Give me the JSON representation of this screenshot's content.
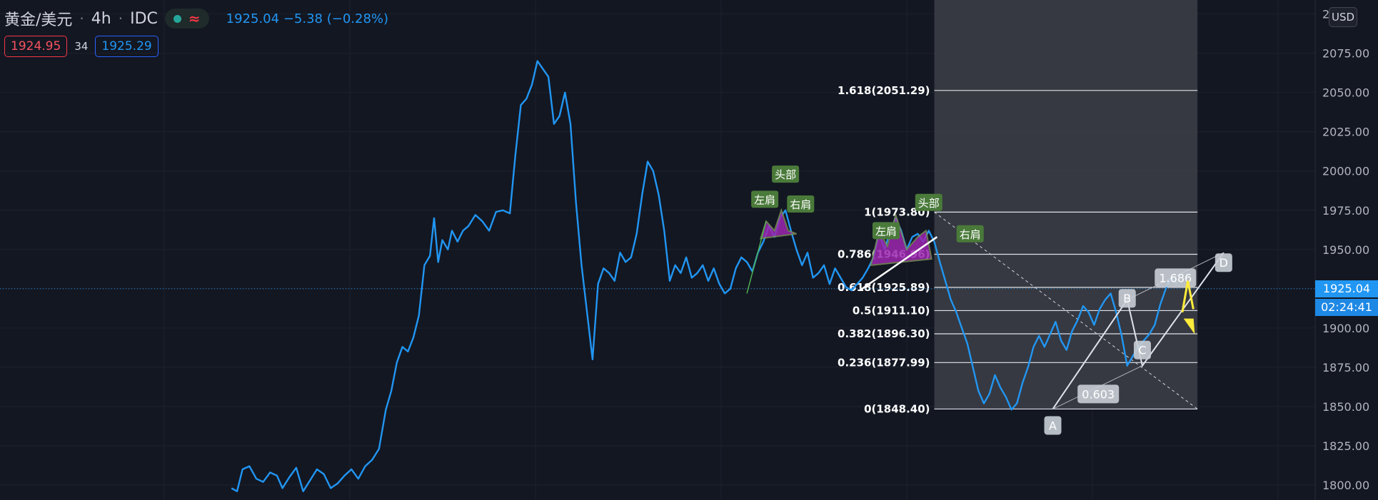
{
  "header": {
    "symbol": "黄金/美元",
    "interval": "4h",
    "source": "IDC",
    "last": "1925.04",
    "change": "−5.38",
    "change_pct": "(−0.28%)",
    "bid": "1924.95",
    "spread": "34",
    "ask": "1925.29",
    "wave_icon": "≈"
  },
  "currency_button": "USD",
  "current_price_label": "1925.04",
  "countdown_label": "02:24:41",
  "colors": {
    "background": "#131722",
    "price_line": "#2196f3",
    "pattern_fill": "#9c27b0",
    "label_bg": "#4a7a3a",
    "fib_region": "#3d3f47",
    "projection_arrow": "#ffeb3b"
  },
  "chart_data": {
    "type": "line",
    "instrument": "XAUUSD",
    "y_axis_ticks": [
      "2100.00",
      "2075.00",
      "2050.00",
      "2025.00",
      "2000.00",
      "1975.00",
      "1950.00",
      "1925.00",
      "1900.00",
      "1875.00",
      "1850.00",
      "1825.00",
      "1800.00"
    ],
    "y_axis_top_label": "2",
    "ylim": [
      1795,
      2108
    ],
    "x_domain": [
      0,
      1000
    ],
    "series": [
      {
        "values": [
          [
            168,
            1798
          ],
          [
            172,
            1796
          ],
          [
            176,
            1810
          ],
          [
            181,
            1812
          ],
          [
            186,
            1804
          ],
          [
            191,
            1802
          ],
          [
            196,
            1808
          ],
          [
            201,
            1806
          ],
          [
            205,
            1798
          ],
          [
            210,
            1805
          ],
          [
            215,
            1811
          ],
          [
            220,
            1796
          ],
          [
            225,
            1803
          ],
          [
            230,
            1810
          ],
          [
            235,
            1807
          ],
          [
            240,
            1798
          ],
          [
            245,
            1801
          ],
          [
            250,
            1806
          ],
          [
            255,
            1810
          ],
          [
            260,
            1804
          ],
          [
            265,
            1812
          ],
          [
            270,
            1816
          ],
          [
            275,
            1823
          ],
          [
            280,
            1848
          ],
          [
            284,
            1860
          ],
          [
            288,
            1878
          ],
          [
            292,
            1888
          ],
          [
            296,
            1885
          ],
          [
            300,
            1894
          ],
          [
            304,
            1908
          ],
          [
            308,
            1940
          ],
          [
            312,
            1946
          ],
          [
            315,
            1970
          ],
          [
            318,
            1942
          ],
          [
            321,
            1956
          ],
          [
            325,
            1950
          ],
          [
            328,
            1962
          ],
          [
            332,
            1955
          ],
          [
            336,
            1962
          ],
          [
            340,
            1965
          ],
          [
            345,
            1972
          ],
          [
            350,
            1968
          ],
          [
            355,
            1962
          ],
          [
            360,
            1974
          ],
          [
            365,
            1975
          ],
          [
            370,
            1973
          ],
          [
            374,
            2010
          ],
          [
            378,
            2042
          ],
          [
            382,
            2046
          ],
          [
            386,
            2055
          ],
          [
            390,
            2070
          ],
          [
            394,
            2065
          ],
          [
            398,
            2060
          ],
          [
            402,
            2030
          ],
          [
            406,
            2035
          ],
          [
            410,
            2050
          ],
          [
            414,
            2030
          ],
          [
            418,
            1980
          ],
          [
            422,
            1940
          ],
          [
            426,
            1910
          ],
          [
            430,
            1880
          ],
          [
            434,
            1928
          ],
          [
            438,
            1938
          ],
          [
            442,
            1935
          ],
          [
            446,
            1930
          ],
          [
            450,
            1948
          ],
          [
            454,
            1942
          ],
          [
            458,
            1945
          ],
          [
            462,
            1960
          ],
          [
            466,
            1985
          ],
          [
            470,
            2006
          ],
          [
            474,
            2000
          ],
          [
            478,
            1985
          ],
          [
            482,
            1962
          ],
          [
            486,
            1930
          ],
          [
            490,
            1940
          ],
          [
            494,
            1935
          ],
          [
            498,
            1945
          ],
          [
            502,
            1932
          ],
          [
            506,
            1935
          ],
          [
            510,
            1940
          ],
          [
            514,
            1930
          ],
          [
            518,
            1938
          ],
          [
            522,
            1928
          ],
          [
            526,
            1922
          ],
          [
            530,
            1925
          ],
          [
            534,
            1938
          ],
          [
            538,
            1945
          ],
          [
            542,
            1942
          ],
          [
            546,
            1936
          ],
          [
            550,
            1948
          ],
          [
            554,
            1955
          ],
          [
            558,
            1965
          ],
          [
            562,
            1958
          ],
          [
            566,
            1970
          ],
          [
            570,
            1975
          ],
          [
            574,
            1962
          ],
          [
            578,
            1950
          ],
          [
            582,
            1940
          ],
          [
            586,
            1948
          ],
          [
            590,
            1932
          ],
          [
            594,
            1935
          ],
          [
            598,
            1940
          ],
          [
            602,
            1928
          ],
          [
            606,
            1938
          ],
          [
            610,
            1932
          ],
          [
            614,
            1926
          ],
          [
            618,
            1924
          ],
          [
            622,
            1928
          ],
          [
            626,
            1932
          ],
          [
            630,
            1938
          ],
          [
            634,
            1945
          ],
          [
            638,
            1960
          ],
          [
            642,
            1950
          ],
          [
            646,
            1962
          ],
          [
            650,
            1970
          ],
          [
            654,
            1962
          ],
          [
            658,
            1950
          ],
          [
            662,
            1958
          ],
          [
            666,
            1960
          ],
          [
            670,
            1955
          ],
          [
            674,
            1962
          ],
          [
            678,
            1955
          ],
          [
            682,
            1942
          ],
          [
            686,
            1930
          ],
          [
            690,
            1918
          ],
          [
            694,
            1910
          ],
          [
            698,
            1900
          ],
          [
            702,
            1890
          ],
          [
            706,
            1875
          ],
          [
            710,
            1860
          ],
          [
            714,
            1852
          ],
          [
            718,
            1858
          ],
          [
            722,
            1870
          ],
          [
            726,
            1862
          ],
          [
            730,
            1856
          ],
          [
            734,
            1848
          ],
          [
            738,
            1852
          ],
          [
            742,
            1865
          ],
          [
            746,
            1875
          ],
          [
            750,
            1888
          ],
          [
            754,
            1895
          ],
          [
            758,
            1888
          ],
          [
            762,
            1896
          ],
          [
            766,
            1904
          ],
          [
            770,
            1892
          ],
          [
            774,
            1886
          ],
          [
            778,
            1898
          ],
          [
            782,
            1905
          ],
          [
            786,
            1914
          ],
          [
            790,
            1910
          ],
          [
            794,
            1902
          ],
          [
            798,
            1912
          ],
          [
            802,
            1918
          ],
          [
            806,
            1922
          ],
          [
            810,
            1910
          ],
          [
            814,
            1895
          ],
          [
            818,
            1876
          ],
          [
            822,
            1882
          ],
          [
            826,
            1888
          ],
          [
            830,
            1892
          ],
          [
            834,
            1896
          ],
          [
            838,
            1902
          ],
          [
            842,
            1915
          ],
          [
            846,
            1925
          ],
          [
            850,
            1932
          ],
          [
            854,
            1928
          ]
        ]
      }
    ],
    "fibonacci": {
      "levels": [
        {
          "label": "1.618(2051.29)",
          "value": 2051.29
        },
        {
          "label": "1(1973.80)",
          "value": 1973.8
        },
        {
          "label": "0.786(1946.96)",
          "value": 1946.96
        },
        {
          "label": "0.618(1925.89)",
          "value": 1925.89
        },
        {
          "label": "0.5(1911.10)",
          "value": 1911.1
        },
        {
          "label": "0.382(1896.30)",
          "value": 1896.3
        },
        {
          "label": "0.236(1877.99)",
          "value": 1877.99
        },
        {
          "label": "0(1848.40)",
          "value": 1848.4
        }
      ]
    },
    "head_shoulders": [
      {
        "left_shoulder": "左肩",
        "head": "头部",
        "right_shoulder": "右肩"
      },
      {
        "left_shoulder": "左肩",
        "head": "头部",
        "right_shoulder": "右肩"
      }
    ],
    "harmonic": {
      "points": [
        "A",
        "B",
        "C",
        "D"
      ],
      "ratios": [
        "0.603",
        "1.686"
      ]
    }
  }
}
